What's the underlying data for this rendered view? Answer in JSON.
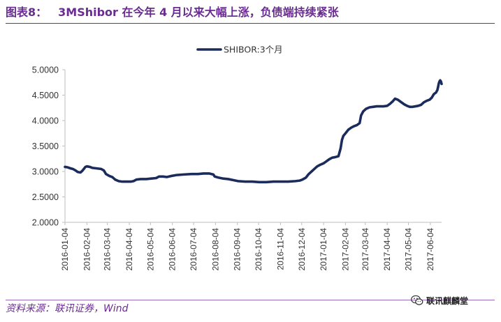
{
  "header": {
    "figure_label": "图表8：",
    "title": "3MShibor 在今年 4 月以来大幅上涨，负债端持续紧张"
  },
  "footer": {
    "source": "资料来源：联讯证券，Wind",
    "brand": "联讯麒麟堂",
    "brand_icon": "wechat-icon"
  },
  "colors": {
    "title": "#6a2c91",
    "series": "#1a2b5c",
    "axis": "#bfbfbf"
  },
  "chart_data": {
    "type": "line",
    "legend": {
      "position": "top-center"
    },
    "y_range": [
      2.0,
      5.0
    ],
    "y_ticks": [
      "2.0000",
      "2.5000",
      "3.0000",
      "3.5000",
      "4.0000",
      "4.5000",
      "5.0000"
    ],
    "x_range": [
      "2016-01-04",
      "2017-06-20"
    ],
    "x_ticks": [
      "2016-01-04",
      "2016-02-04",
      "2016-03-04",
      "2016-04-04",
      "2016-05-04",
      "2016-06-04",
      "2016-07-04",
      "2016-08-04",
      "2016-09-04",
      "2016-10-04",
      "2016-11-04",
      "2016-12-04",
      "2017-01-04",
      "2017-02-04",
      "2017-03-04",
      "2017-04-04",
      "2017-05-04",
      "2017-06-04"
    ],
    "grid": false,
    "series": [
      {
        "name": "SHIBOR:3个月",
        "points": [
          [
            "2016-01-04",
            3.09
          ],
          [
            "2016-01-08",
            3.08
          ],
          [
            "2016-01-12",
            3.06
          ],
          [
            "2016-01-15",
            3.05
          ],
          [
            "2016-01-19",
            3.02
          ],
          [
            "2016-01-22",
            2.99
          ],
          [
            "2016-01-26",
            2.98
          ],
          [
            "2016-01-29",
            3.02
          ],
          [
            "2016-02-02",
            3.09
          ],
          [
            "2016-02-04",
            3.1
          ],
          [
            "2016-02-08",
            3.09
          ],
          [
            "2016-02-12",
            3.07
          ],
          [
            "2016-02-18",
            3.06
          ],
          [
            "2016-02-24",
            3.05
          ],
          [
            "2016-02-28",
            3.02
          ],
          [
            "2016-03-02",
            2.95
          ],
          [
            "2016-03-07",
            2.91
          ],
          [
            "2016-03-11",
            2.89
          ],
          [
            "2016-03-15",
            2.84
          ],
          [
            "2016-03-20",
            2.81
          ],
          [
            "2016-03-25",
            2.8
          ],
          [
            "2016-04-01",
            2.8
          ],
          [
            "2016-04-06",
            2.8
          ],
          [
            "2016-04-10",
            2.81
          ],
          [
            "2016-04-14",
            2.84
          ],
          [
            "2016-04-20",
            2.85
          ],
          [
            "2016-04-28",
            2.85
          ],
          [
            "2016-05-05",
            2.86
          ],
          [
            "2016-05-12",
            2.87
          ],
          [
            "2016-05-16",
            2.9
          ],
          [
            "2016-05-22",
            2.9
          ],
          [
            "2016-05-27",
            2.89
          ],
          [
            "2016-06-02",
            2.91
          ],
          [
            "2016-06-10",
            2.93
          ],
          [
            "2016-06-20",
            2.94
          ],
          [
            "2016-07-01",
            2.95
          ],
          [
            "2016-07-10",
            2.95
          ],
          [
            "2016-07-18",
            2.96
          ],
          [
            "2016-07-26",
            2.96
          ],
          [
            "2016-08-01",
            2.94
          ],
          [
            "2016-08-03",
            2.9
          ],
          [
            "2016-08-08",
            2.88
          ],
          [
            "2016-08-15",
            2.86
          ],
          [
            "2016-08-22",
            2.85
          ],
          [
            "2016-08-29",
            2.83
          ],
          [
            "2016-09-05",
            2.81
          ],
          [
            "2016-09-15",
            2.8
          ],
          [
            "2016-09-25",
            2.8
          ],
          [
            "2016-10-05",
            2.79
          ],
          [
            "2016-10-15",
            2.79
          ],
          [
            "2016-10-25",
            2.8
          ],
          [
            "2016-11-05",
            2.8
          ],
          [
            "2016-11-15",
            2.8
          ],
          [
            "2016-11-25",
            2.81
          ],
          [
            "2016-12-01",
            2.82
          ],
          [
            "2016-12-05",
            2.84
          ],
          [
            "2016-12-10",
            2.88
          ],
          [
            "2016-12-14",
            2.95
          ],
          [
            "2016-12-18",
            3.0
          ],
          [
            "2016-12-22",
            3.05
          ],
          [
            "2016-12-26",
            3.1
          ],
          [
            "2016-12-30",
            3.13
          ],
          [
            "2017-01-04",
            3.16
          ],
          [
            "2017-01-08",
            3.2
          ],
          [
            "2017-01-12",
            3.24
          ],
          [
            "2017-01-16",
            3.27
          ],
          [
            "2017-01-20",
            3.28
          ],
          [
            "2017-01-25",
            3.3
          ],
          [
            "2017-01-28",
            3.45
          ],
          [
            "2017-01-30",
            3.62
          ],
          [
            "2017-02-01",
            3.7
          ],
          [
            "2017-02-04",
            3.75
          ],
          [
            "2017-02-08",
            3.82
          ],
          [
            "2017-02-12",
            3.86
          ],
          [
            "2017-02-16",
            3.89
          ],
          [
            "2017-02-20",
            3.91
          ],
          [
            "2017-02-24",
            3.95
          ],
          [
            "2017-02-26",
            4.1
          ],
          [
            "2017-03-01",
            4.18
          ],
          [
            "2017-03-05",
            4.23
          ],
          [
            "2017-03-10",
            4.26
          ],
          [
            "2017-03-15",
            4.27
          ],
          [
            "2017-03-20",
            4.28
          ],
          [
            "2017-03-25",
            4.28
          ],
          [
            "2017-03-30",
            4.28
          ],
          [
            "2017-04-04",
            4.29
          ],
          [
            "2017-04-08",
            4.33
          ],
          [
            "2017-04-12",
            4.38
          ],
          [
            "2017-04-15",
            4.43
          ],
          [
            "2017-04-19",
            4.41
          ],
          [
            "2017-04-23",
            4.37
          ],
          [
            "2017-04-28",
            4.32
          ],
          [
            "2017-05-02",
            4.29
          ],
          [
            "2017-05-06",
            4.27
          ],
          [
            "2017-05-10",
            4.27
          ],
          [
            "2017-05-14",
            4.28
          ],
          [
            "2017-05-18",
            4.29
          ],
          [
            "2017-05-22",
            4.31
          ],
          [
            "2017-05-26",
            4.36
          ],
          [
            "2017-05-30",
            4.39
          ],
          [
            "2017-06-03",
            4.41
          ],
          [
            "2017-06-06",
            4.45
          ],
          [
            "2017-06-09",
            4.52
          ],
          [
            "2017-06-12",
            4.55
          ],
          [
            "2017-06-14",
            4.6
          ],
          [
            "2017-06-15",
            4.66
          ],
          [
            "2017-06-16",
            4.73
          ],
          [
            "2017-06-17",
            4.77
          ],
          [
            "2017-06-18",
            4.79
          ],
          [
            "2017-06-19",
            4.77
          ],
          [
            "2017-06-20",
            4.72
          ]
        ]
      }
    ]
  }
}
